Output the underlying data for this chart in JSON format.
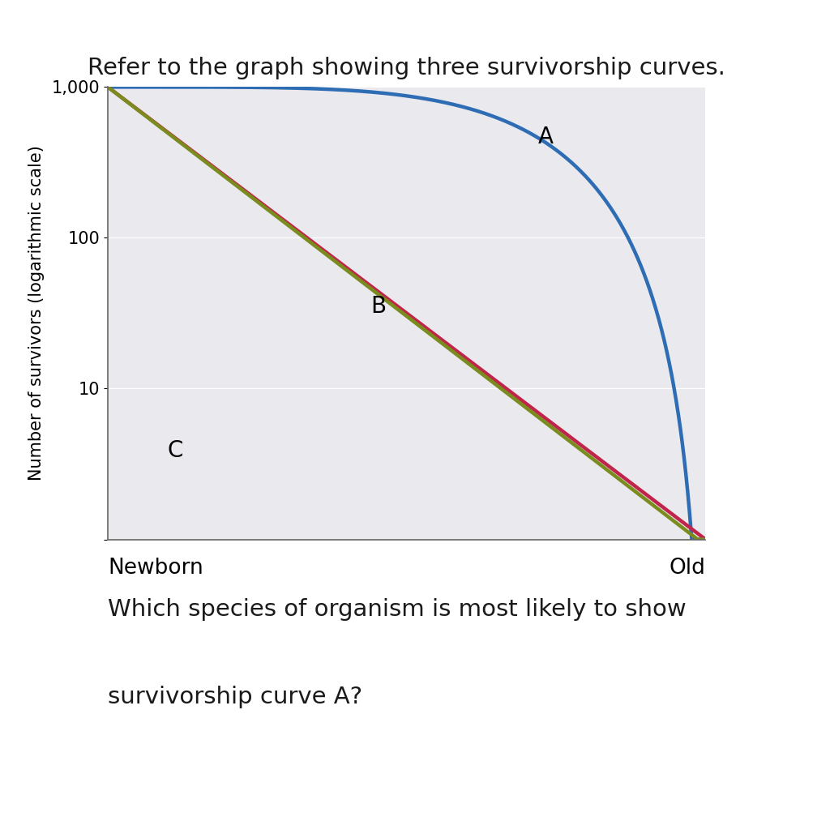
{
  "title": "Refer to the graph showing three survivorship curves.",
  "title_color": "#1a1a1a",
  "title_fontsize": 21,
  "ylabel": "Number of survivors (logarithmic scale)",
  "xlabel_left": "Newborn",
  "xlabel_right": "Old",
  "xlabel_fontsize": 19,
  "ylabel_fontsize": 15,
  "background_color": "#ffffff",
  "plot_bg_color": "#eaeaee",
  "curve_A_color": "#2e6db4",
  "curve_B_color": "#c0244a",
  "curve_C_color": "#7a8c1e",
  "curve_A_label": "A",
  "curve_B_label": "B",
  "curve_C_label": "C",
  "label_fontsize": 20,
  "ytick_labels": [
    "",
    "10",
    "100",
    "1,000"
  ],
  "line_width": 3.2,
  "question_text_line1": "Which species of organism is most likely to show",
  "question_text_line2": "survivorship curve A?",
  "question_fontsize": 21,
  "question_color": "#1a1a1a"
}
